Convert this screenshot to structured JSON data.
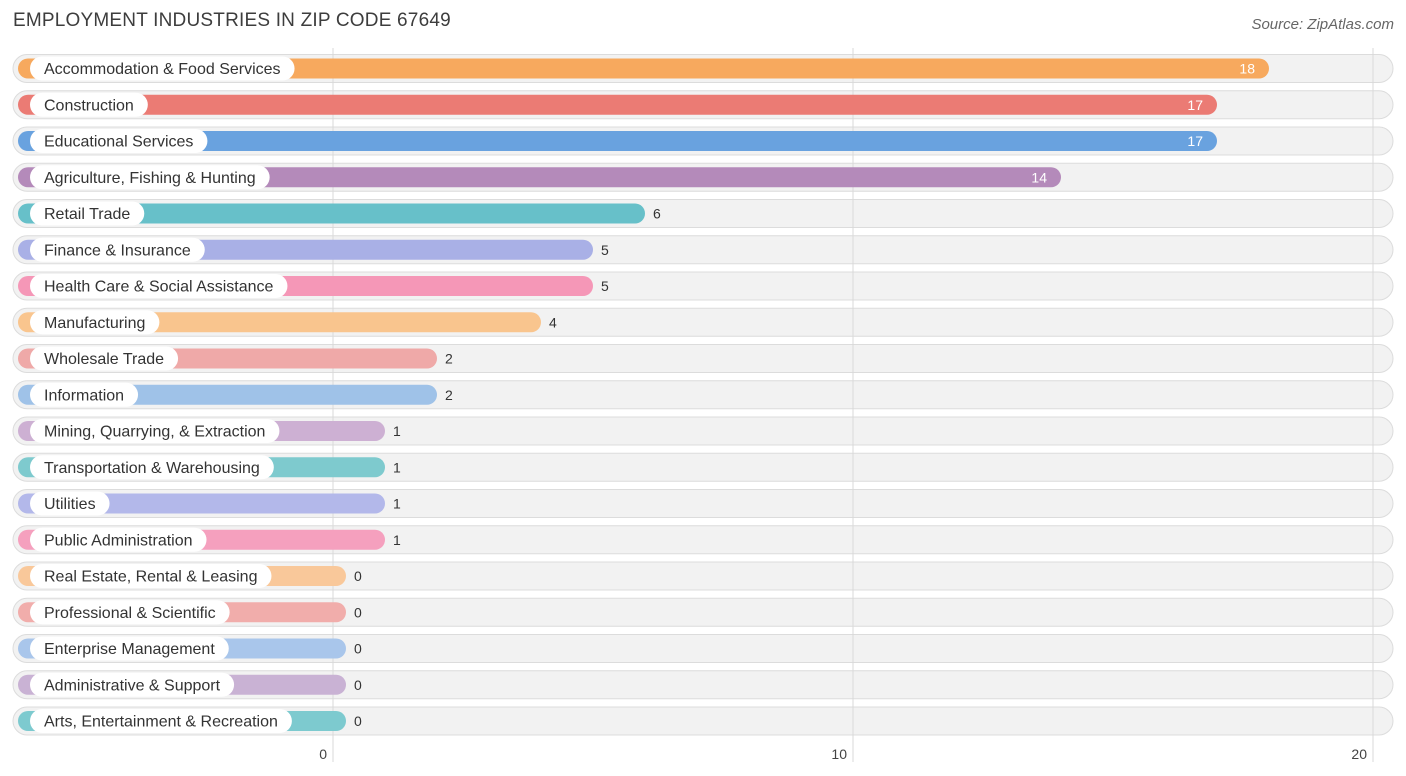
{
  "header": {
    "title": "EMPLOYMENT INDUSTRIES IN ZIP CODE 67649",
    "source": "Source: ZipAtlas.com"
  },
  "chart_data": {
    "type": "bar",
    "orientation": "horizontal",
    "title": "EMPLOYMENT INDUSTRIES IN ZIP CODE 67649",
    "xlabel": "",
    "ylabel": "",
    "xlim": [
      0,
      20
    ],
    "ticks": [
      0,
      10,
      20
    ],
    "grid": true,
    "categories": [
      "Accommodation & Food Services",
      "Construction",
      "Educational Services",
      "Agriculture, Fishing & Hunting",
      "Retail Trade",
      "Finance & Insurance",
      "Health Care & Social Assistance",
      "Manufacturing",
      "Wholesale Trade",
      "Information",
      "Mining, Quarrying, & Extraction",
      "Transportation & Warehousing",
      "Utilities",
      "Public Administration",
      "Real Estate, Rental & Leasing",
      "Professional & Scientific",
      "Enterprise Management",
      "Administrative & Support",
      "Arts, Entertainment & Recreation"
    ],
    "values": [
      18,
      17,
      17,
      14,
      6,
      5,
      5,
      4,
      2,
      2,
      1,
      1,
      1,
      1,
      0,
      0,
      0,
      0,
      0
    ],
    "colors": [
      "#f7a95e",
      "#eb7b74",
      "#69a2df",
      "#b48aba",
      "#67c0c9",
      "#a9b0e6",
      "#f597b7",
      "#f9c58e",
      "#efa9a8",
      "#9fc2e8",
      "#cdb0d3",
      "#7ecace",
      "#b3b8ea",
      "#f5a0be",
      "#f9c89a",
      "#f1adab",
      "#a9c6eb",
      "#c9b2d4",
      "#7dcacf"
    ]
  }
}
